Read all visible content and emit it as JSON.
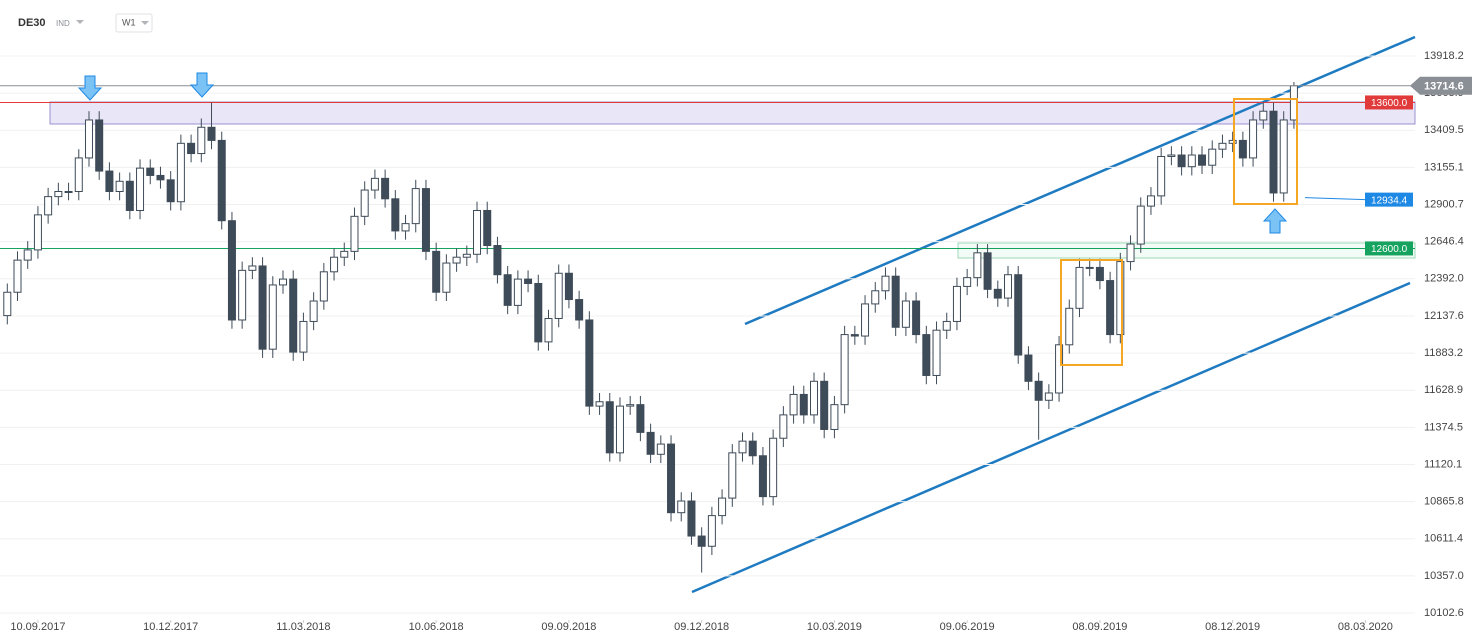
{
  "chart_data": {
    "type": "candlestick",
    "symbol": "DE30",
    "market": "IND",
    "interval": "W1",
    "x": [
      "20.08.2017",
      "27.08.2017",
      "03.09.2017",
      "10.09.2017",
      "17.09.2017",
      "24.09.2017",
      "01.10.2017",
      "08.10.2017",
      "15.10.2017",
      "22.10.2017",
      "29.10.2017",
      "05.11.2017",
      "12.11.2017",
      "19.11.2017",
      "26.11.2017",
      "03.12.2017",
      "10.12.2017",
      "17.12.2017",
      "24.12.2017",
      "31.12.2017",
      "07.01.2018",
      "14.01.2018",
      "21.01.2018",
      "28.01.2018",
      "04.02.2018",
      "11.02.2018",
      "18.02.2018",
      "25.02.2018",
      "04.03.2018",
      "11.03.2018",
      "18.03.2018",
      "25.03.2018",
      "01.04.2018",
      "08.04.2018",
      "15.04.2018",
      "22.04.2018",
      "29.04.2018",
      "06.05.2018",
      "13.05.2018",
      "20.05.2018",
      "27.05.2018",
      "03.06.2018",
      "10.06.2018",
      "17.06.2018",
      "24.06.2018",
      "01.07.2018",
      "08.07.2018",
      "15.07.2018",
      "22.07.2018",
      "29.07.2018",
      "05.08.2018",
      "12.08.2018",
      "19.08.2018",
      "26.08.2018",
      "02.09.2018",
      "09.09.2018",
      "16.09.2018",
      "23.09.2018",
      "30.09.2018",
      "07.10.2018",
      "14.10.2018",
      "21.10.2018",
      "28.10.2018",
      "04.11.2018",
      "11.11.2018",
      "18.11.2018",
      "25.11.2018",
      "02.12.2018",
      "09.12.2018",
      "16.12.2018",
      "23.12.2018",
      "30.12.2018",
      "06.01.2019",
      "13.01.2019",
      "20.01.2019",
      "27.01.2019",
      "03.02.2019",
      "10.02.2019",
      "17.02.2019",
      "24.02.2019",
      "03.03.2019",
      "10.03.2019",
      "17.03.2019",
      "24.03.2019",
      "31.03.2019",
      "07.04.2019",
      "14.04.2019",
      "21.04.2019",
      "28.04.2019",
      "05.05.2019",
      "12.05.2019",
      "19.05.2019",
      "26.05.2019",
      "02.06.2019",
      "09.06.2019",
      "16.06.2019",
      "23.06.2019",
      "30.06.2019",
      "07.07.2019",
      "14.07.2019",
      "21.07.2019",
      "28.07.2019",
      "04.08.2019",
      "11.08.2019",
      "18.08.2019",
      "25.08.2019",
      "01.09.2019",
      "08.09.2019",
      "15.09.2019",
      "22.09.2019",
      "29.09.2019",
      "06.10.2019",
      "13.10.2019",
      "20.10.2019",
      "27.10.2019",
      "03.11.2019",
      "10.11.2019",
      "17.11.2019",
      "24.11.2019",
      "01.12.2019",
      "08.12.2019",
      "15.12.2019",
      "22.12.2019",
      "29.12.2019",
      "05.01.2020",
      "12.01.2020",
      "19.01.2020"
    ],
    "open": [
      12140,
      12300,
      12520,
      12590,
      12830,
      12955,
      12990,
      12990,
      13220,
      13480,
      13130,
      12990,
      13060,
      12860,
      13150,
      13100,
      13070,
      12920,
      13320,
      13250,
      13430,
      13340,
      12790,
      12110,
      12450,
      12480,
      11910,
      12350,
      12390,
      11890,
      12100,
      12240,
      12440,
      12540,
      12580,
      12820,
      13000,
      13080,
      12940,
      12720,
      12770,
      13010,
      12580,
      12300,
      12500,
      12540,
      12560,
      12860,
      12620,
      12420,
      12210,
      12390,
      12360,
      11960,
      12120,
      12430,
      12250,
      12110,
      11520,
      11550,
      11200,
      11520,
      11530,
      11340,
      11190,
      11260,
      10790,
      10870,
      10630,
      10560,
      10770,
      10890,
      11200,
      11280,
      11180,
      10900,
      11300,
      11460,
      11600,
      11460,
      11690,
      11360,
      11530,
      12010,
      12000,
      12220,
      12310,
      12410,
      12060,
      12240,
      12010,
      11730,
      12040,
      12100,
      12340,
      12400,
      12570,
      12320,
      12260,
      12420,
      11870,
      11690,
      11560,
      11610,
      11940,
      12190,
      12470,
      12470,
      12380,
      12010,
      12510,
      12630,
      12890,
      12960,
      13230,
      13240,
      13160,
      13240,
      13170,
      13280,
      13320,
      13340,
      13220,
      13480,
      13540,
      12980,
      13480
    ],
    "high": [
      12360,
      12580,
      12650,
      12890,
      13015,
      13050,
      13050,
      13280,
      13540,
      13540,
      13190,
      13120,
      13120,
      13210,
      13210,
      13160,
      13130,
      13380,
      13380,
      13490,
      13600,
      13400,
      12850,
      12510,
      12540,
      12540,
      12410,
      12450,
      12450,
      12160,
      12300,
      12500,
      12600,
      12640,
      12880,
      13060,
      13140,
      13140,
      13000,
      12830,
      13070,
      13070,
      12640,
      12560,
      12600,
      12620,
      12920,
      12920,
      12680,
      12480,
      12450,
      12450,
      12420,
      12180,
      12490,
      12490,
      12310,
      12170,
      11610,
      11610,
      11580,
      11590,
      11590,
      11400,
      11320,
      11320,
      10930,
      10930,
      10690,
      10830,
      10950,
      11260,
      11340,
      11340,
      11240,
      11360,
      11520,
      11660,
      11660,
      11750,
      11750,
      11590,
      12070,
      12070,
      12280,
      12370,
      12470,
      12470,
      12300,
      12300,
      12070,
      12100,
      12160,
      12400,
      12460,
      12630,
      12630,
      12380,
      12480,
      12480,
      11930,
      11750,
      11670,
      12000,
      12250,
      12530,
      12530,
      12530,
      12440,
      12570,
      12690,
      12950,
      13020,
      13290,
      13300,
      13300,
      13300,
      13300,
      13340,
      13380,
      13400,
      13400,
      13540,
      13600,
      13600,
      13540,
      13740
    ],
    "low": [
      12080,
      12240,
      12460,
      12530,
      12770,
      12895,
      12930,
      12930,
      13160,
      13070,
      12930,
      12930,
      12800,
      12800,
      13040,
      13010,
      12860,
      12860,
      13190,
      13190,
      13280,
      12730,
      12050,
      12050,
      12390,
      11850,
      11850,
      12290,
      11830,
      11830,
      12040,
      12180,
      12380,
      12480,
      12520,
      12760,
      12940,
      12880,
      12660,
      12660,
      12710,
      12520,
      12240,
      12240,
      12440,
      12480,
      12500,
      12560,
      12360,
      12150,
      12150,
      12300,
      11900,
      11900,
      12060,
      12190,
      12050,
      11460,
      11460,
      11140,
      11140,
      11460,
      11280,
      11130,
      11130,
      10730,
      10730,
      10570,
      10380,
      10500,
      10710,
      10830,
      11140,
      11120,
      10840,
      10840,
      11240,
      11400,
      11400,
      11400,
      11300,
      11300,
      11470,
      11940,
      11940,
      12160,
      12250,
      12000,
      12000,
      11950,
      11670,
      11670,
      11980,
      12040,
      12280,
      12340,
      12260,
      12200,
      12200,
      11810,
      11630,
      11290,
      11500,
      11550,
      11880,
      12130,
      12410,
      12320,
      11950,
      11950,
      12450,
      12570,
      12830,
      12900,
      13170,
      13100,
      13100,
      13110,
      13110,
      13220,
      13260,
      13160,
      13160,
      13420,
      12920,
      12920,
      13420
    ],
    "close": [
      12300,
      12520,
      12590,
      12830,
      12955,
      12990,
      12990,
      13220,
      13480,
      13130,
      12990,
      13060,
      12860,
      13150,
      13100,
      13070,
      12920,
      13320,
      13250,
      13430,
      13340,
      12790,
      12110,
      12450,
      12480,
      11910,
      12350,
      12390,
      11890,
      12100,
      12240,
      12440,
      12540,
      12580,
      12820,
      13000,
      13080,
      12940,
      12720,
      12770,
      13010,
      12580,
      12300,
      12500,
      12540,
      12560,
      12860,
      12620,
      12420,
      12210,
      12390,
      12360,
      11960,
      12120,
      12430,
      12250,
      12110,
      11520,
      11550,
      11200,
      11520,
      11530,
      11340,
      11190,
      11260,
      10790,
      10870,
      10630,
      10560,
      10770,
      10890,
      11200,
      11280,
      11180,
      10900,
      11300,
      11460,
      11600,
      11460,
      11690,
      11360,
      11530,
      12010,
      12000,
      12220,
      12310,
      12410,
      12060,
      12240,
      12010,
      11730,
      12040,
      12100,
      12340,
      12400,
      12570,
      12320,
      12260,
      12420,
      11870,
      11690,
      11560,
      11610,
      11940,
      12190,
      12470,
      12470,
      12380,
      12010,
      12510,
      12630,
      12890,
      12960,
      13230,
      13240,
      13160,
      13240,
      13170,
      13280,
      13320,
      13340,
      13220,
      13480,
      13540,
      12980,
      13480,
      13714.6
    ],
    "up_color": "#ffffff",
    "down_color": "#3e4b58",
    "xlim": [
      "15.08.2017",
      "11.04.2020"
    ],
    "xticks": [
      "10.09.2017",
      "10.12.2017",
      "11.03.2018",
      "10.06.2018",
      "09.09.2018",
      "09.12.2018",
      "10.03.2019",
      "09.06.2019",
      "08.09.2019",
      "08.12.2019",
      "08.03.2020"
    ],
    "ylim": [
      10055,
      14062
    ],
    "yticks": [
      13918.2,
      13663.9,
      13409.5,
      13155.1,
      12900.7,
      12646.4,
      {
        "value": 12392,
        "label": "12392.0"
      },
      12137.6,
      11883.2,
      11628.9,
      11374.5,
      11120.1,
      10865.8,
      10611.4,
      {
        "value": 10357,
        "label": "10357.0"
      },
      10102.6
    ],
    "price_lines": [
      {
        "value": 13600,
        "label": "13600.0",
        "color": "#e03a3a"
      },
      {
        "value": 12934.4,
        "color": "#1e88e5"
      },
      {
        "value": 12600,
        "label": "12600.0",
        "color": "#16a35f"
      }
    ],
    "last_color": "#8a8f96"
  }
}
